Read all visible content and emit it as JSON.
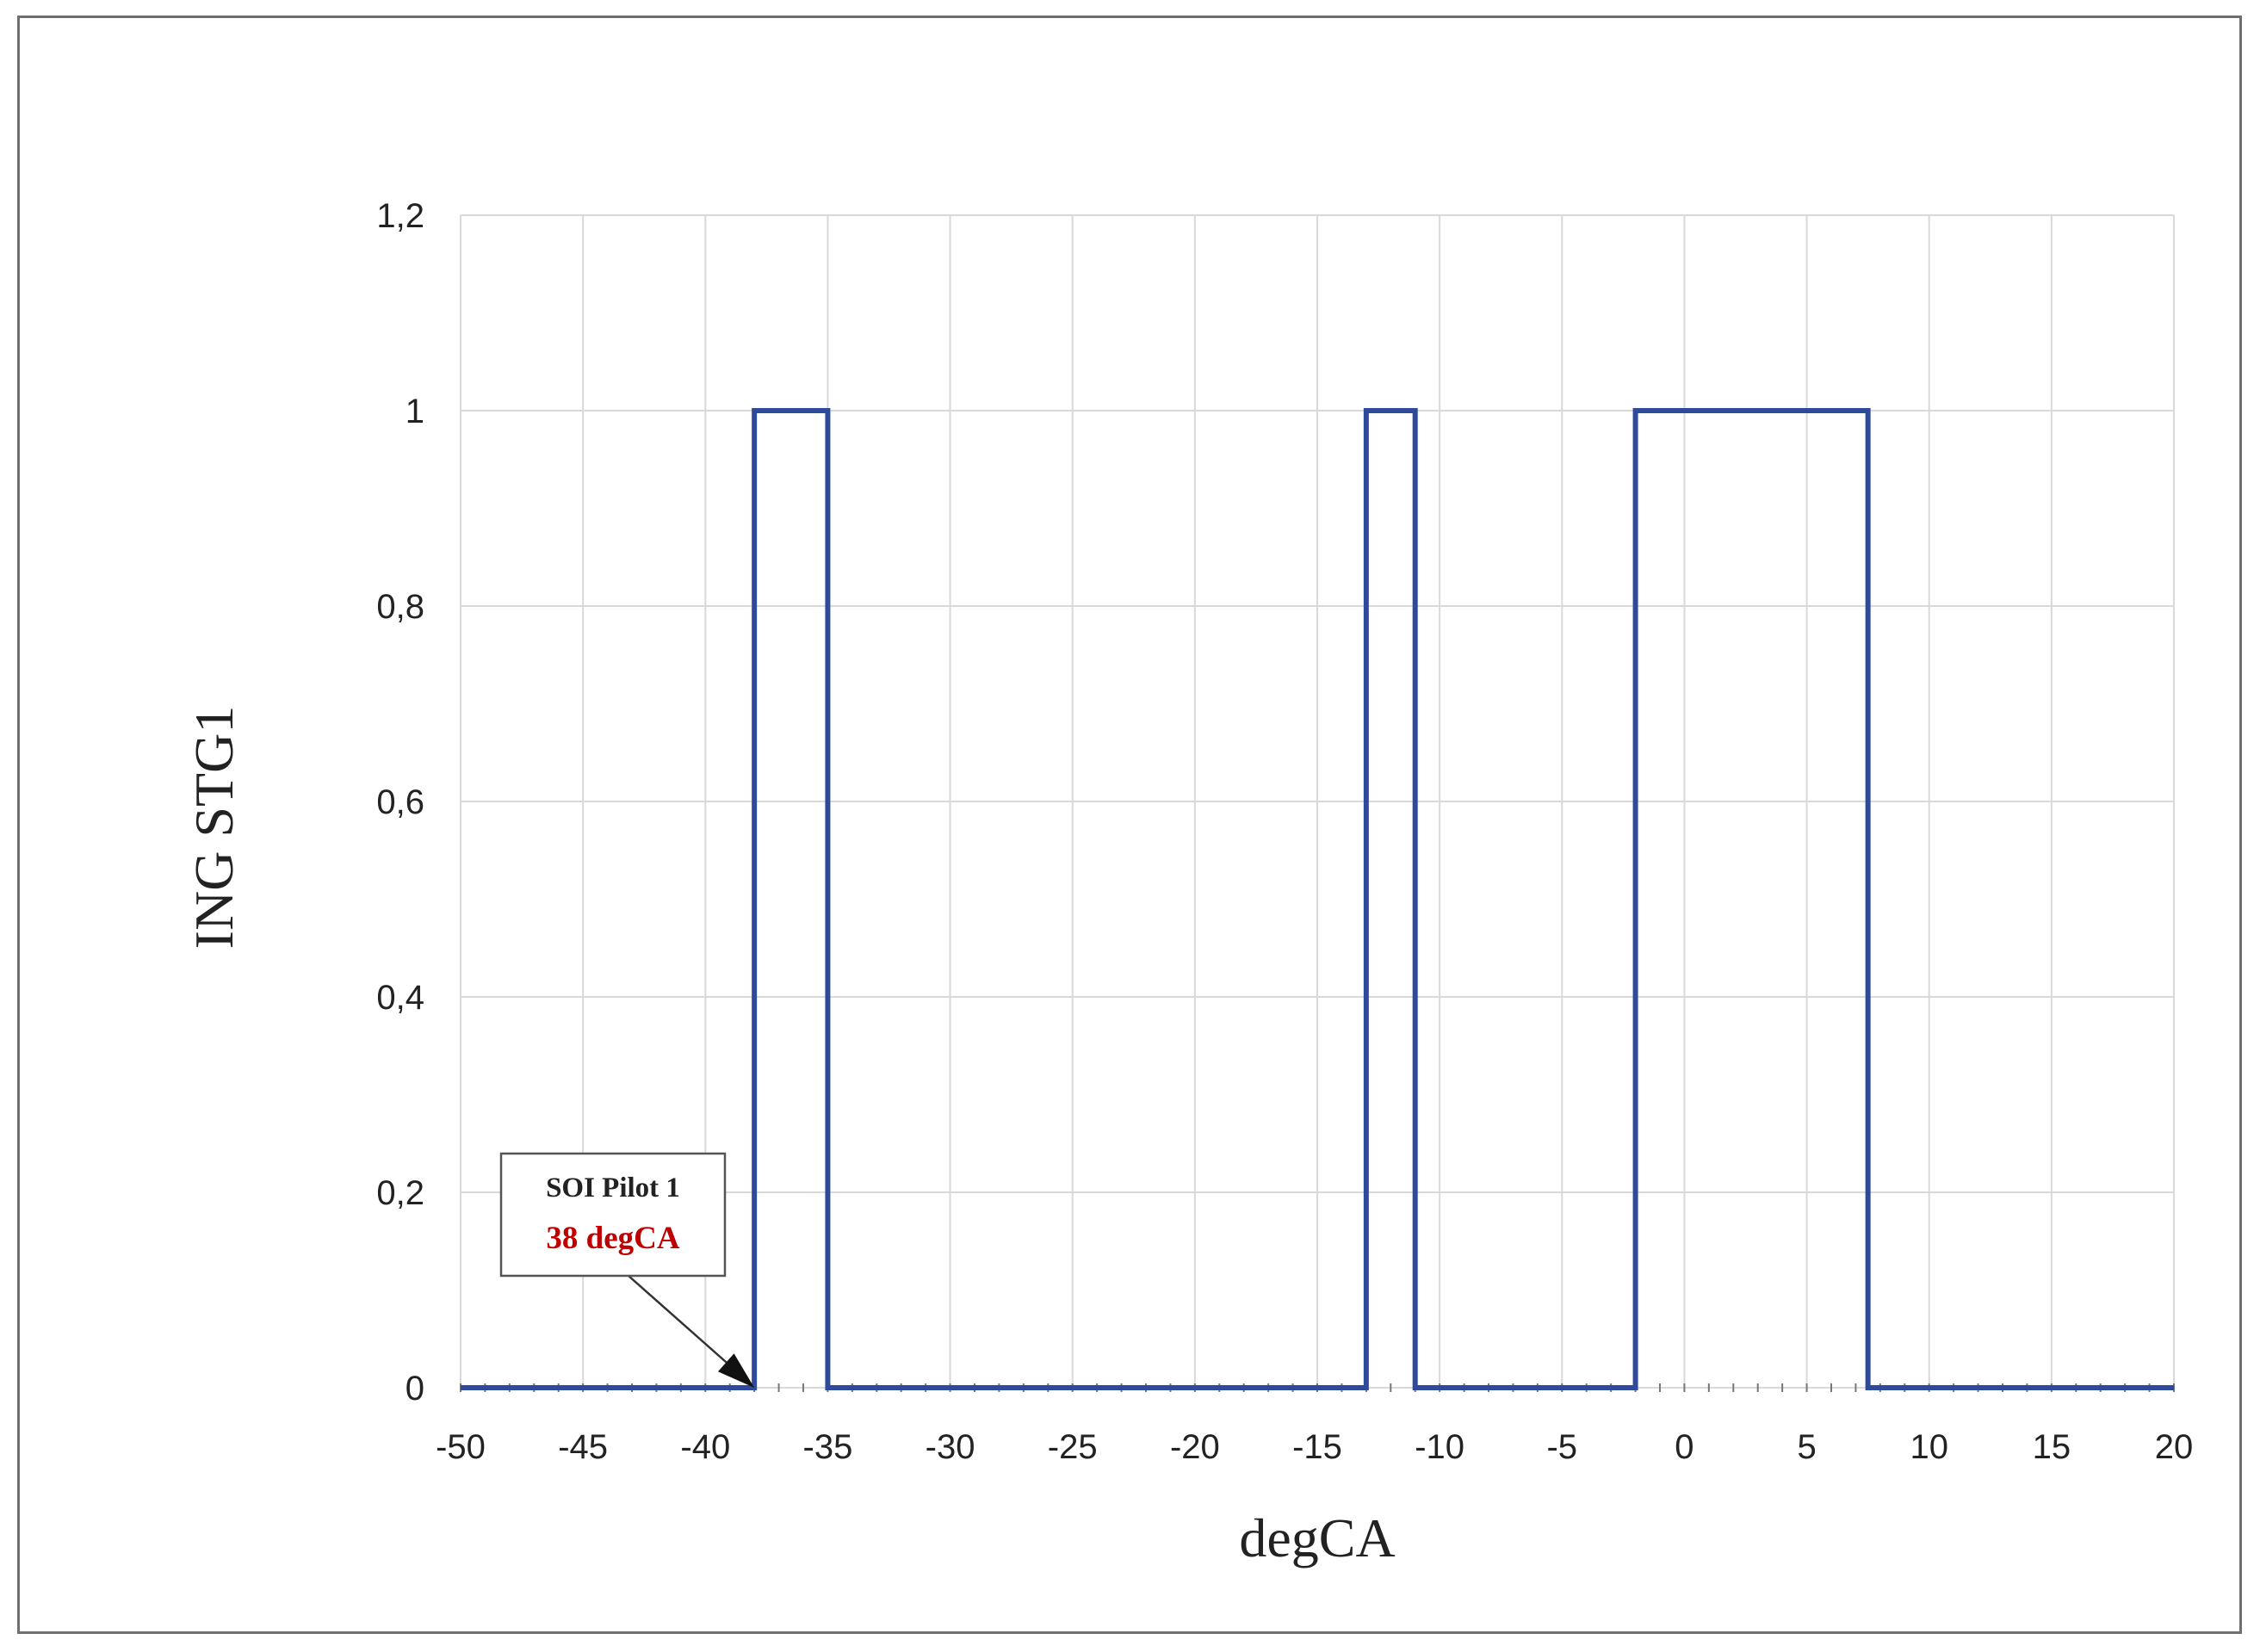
{
  "chart_data": {
    "type": "line",
    "step": true,
    "xlabel": "degCA",
    "ylabel": "ING STG1",
    "xlim": [
      -50,
      20
    ],
    "ylim": [
      0,
      1.2
    ],
    "x_ticks": [
      -50,
      -45,
      -40,
      -35,
      -30,
      -25,
      -20,
      -15,
      -10,
      -5,
      0,
      5,
      10,
      15,
      20
    ],
    "x_tick_labels": [
      "-50",
      "-45",
      "-40",
      "-35",
      "-30",
      "-25",
      "-20",
      "-15",
      "-10",
      "-5",
      "0",
      "5",
      "10",
      "15",
      "20"
    ],
    "y_ticks": [
      0,
      0.2,
      0.4,
      0.6,
      0.8,
      1,
      1.2
    ],
    "y_tick_labels": [
      "0",
      "0,2",
      "0,4",
      "0,6",
      "0,8",
      "1",
      "1,2"
    ],
    "grid": true,
    "line_color": "#2e4a9a",
    "series": [
      {
        "x": [
          -50,
          -38,
          -38,
          -35,
          -35,
          -13,
          -13,
          -11,
          -11,
          -2,
          -2,
          7.5,
          7.5,
          20
        ],
        "y": [
          0,
          0,
          1,
          1,
          0,
          0,
          1,
          1,
          0,
          0,
          1,
          1,
          0,
          0
        ]
      }
    ],
    "annotation": {
      "title": "SOI Pilot 1",
      "value": "38 degCA",
      "value_color": "#c00000",
      "target": {
        "x": -38,
        "y": 0
      }
    }
  }
}
